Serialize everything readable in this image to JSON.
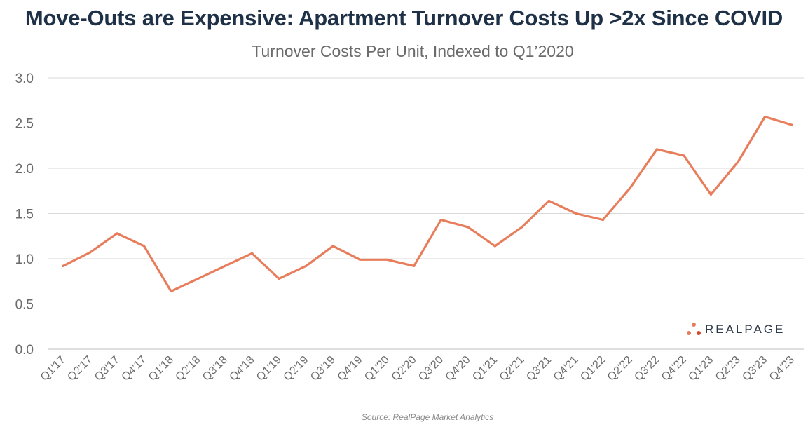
{
  "chart_data": {
    "type": "line",
    "title": "Move-Outs are Expensive: Apartment Turnover Costs Up >2x Since COVID",
    "subtitle": "Turnover Costs Per Unit, Indexed to Q1’2020",
    "xlabel": "",
    "ylabel": "",
    "ylim": [
      0,
      3
    ],
    "yticks": [
      "0.0",
      "0.5",
      "1.0",
      "1.5",
      "2.0",
      "2.5",
      "3.0"
    ],
    "grid": true,
    "categories": [
      "Q1'17",
      "Q2'17",
      "Q3'17",
      "Q4'17",
      "Q1'18",
      "Q2'18",
      "Q3'18",
      "Q4'18",
      "Q1'19",
      "Q2'19",
      "Q3'19",
      "Q4'19",
      "Q1'20",
      "Q2'20",
      "Q3'20",
      "Q4'20",
      "Q1'21",
      "Q2'21",
      "Q3'21",
      "Q4'21",
      "Q1'22",
      "Q2'22",
      "Q3'22",
      "Q4'22",
      "Q1'23",
      "Q2'23",
      "Q3'23",
      "Q4'23"
    ],
    "series": [
      {
        "name": "Turnover Costs Per Unit",
        "values": [
          0.92,
          1.07,
          1.28,
          1.14,
          0.64,
          0.78,
          0.92,
          1.06,
          0.78,
          0.92,
          1.14,
          0.99,
          0.99,
          0.92,
          1.43,
          1.35,
          1.14,
          1.35,
          1.64,
          1.5,
          1.43,
          1.78,
          2.21,
          2.14,
          1.71,
          2.07,
          2.57,
          2.48
        ]
      }
    ],
    "colors": {
      "line": "#e87d5c",
      "grid": "#d9d9d9",
      "axis_text": "#6b6b6b"
    }
  },
  "source": "Source: RealPage Market Analytics",
  "logo": {
    "text": "REALPAGE",
    "dot_colors": [
      "#e87d5c",
      "#e87d5c",
      "#d24a2a"
    ]
  }
}
